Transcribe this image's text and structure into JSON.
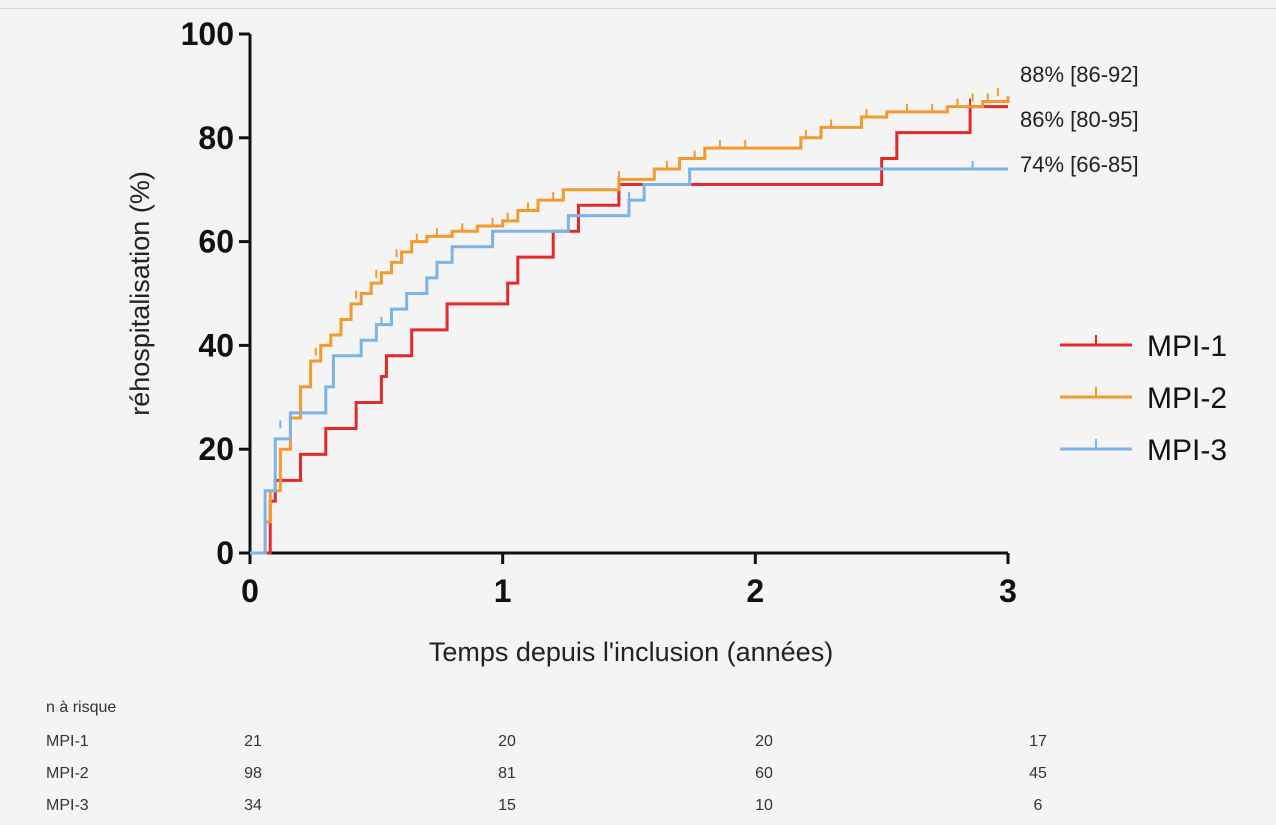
{
  "chart_data": {
    "type": "line",
    "xlabel": "Temps depuis l'inclusion (années)",
    "ylabel": "réhospitalisation (%)",
    "xlim": [
      0,
      3
    ],
    "ylim": [
      0,
      100
    ],
    "x_ticks": [
      0,
      1,
      2,
      3
    ],
    "y_ticks": [
      0,
      20,
      40,
      60,
      80,
      100
    ],
    "grid": false,
    "legend_position": "right",
    "series": [
      {
        "name": "MPI-1",
        "color": "#e32a2a",
        "end_label": "86% [80-95]",
        "steps": [
          [
            0,
            0
          ],
          [
            0.04,
            0
          ],
          [
            0.08,
            10
          ],
          [
            0.1,
            14
          ],
          [
            0.2,
            19
          ],
          [
            0.3,
            24
          ],
          [
            0.42,
            29
          ],
          [
            0.52,
            34
          ],
          [
            0.54,
            38
          ],
          [
            0.64,
            43
          ],
          [
            0.78,
            48
          ],
          [
            1.02,
            52
          ],
          [
            1.06,
            57
          ],
          [
            1.2,
            62
          ],
          [
            1.3,
            67
          ],
          [
            1.46,
            71
          ],
          [
            2.5,
            76
          ],
          [
            2.56,
            81
          ],
          [
            2.85,
            86
          ],
          [
            3.0,
            86
          ]
        ],
        "censored": [
          [
            1.46,
            71
          ],
          [
            2.85,
            86
          ]
        ]
      },
      {
        "name": "MPI-2",
        "color": "#f29a2e",
        "end_label": "88% [86-92]",
        "steps": [
          [
            0,
            0
          ],
          [
            0.04,
            0
          ],
          [
            0.06,
            6
          ],
          [
            0.08,
            12
          ],
          [
            0.12,
            20
          ],
          [
            0.16,
            26
          ],
          [
            0.2,
            32
          ],
          [
            0.24,
            37
          ],
          [
            0.28,
            40
          ],
          [
            0.32,
            42
          ],
          [
            0.36,
            45
          ],
          [
            0.4,
            48
          ],
          [
            0.44,
            50
          ],
          [
            0.48,
            52
          ],
          [
            0.52,
            54
          ],
          [
            0.56,
            56
          ],
          [
            0.6,
            58
          ],
          [
            0.64,
            60
          ],
          [
            0.7,
            61
          ],
          [
            0.8,
            62
          ],
          [
            0.9,
            63
          ],
          [
            1.0,
            64
          ],
          [
            1.06,
            66
          ],
          [
            1.14,
            68
          ],
          [
            1.24,
            70
          ],
          [
            1.46,
            72
          ],
          [
            1.6,
            74
          ],
          [
            1.7,
            76
          ],
          [
            1.8,
            78
          ],
          [
            2.18,
            80
          ],
          [
            2.26,
            82
          ],
          [
            2.42,
            84
          ],
          [
            2.52,
            85
          ],
          [
            2.76,
            86
          ],
          [
            2.9,
            87
          ],
          [
            3.0,
            88
          ]
        ],
        "censored": [
          [
            0.26,
            38
          ],
          [
            0.42,
            49
          ],
          [
            0.5,
            53
          ],
          [
            0.58,
            57
          ],
          [
            0.66,
            60
          ],
          [
            0.74,
            61
          ],
          [
            0.84,
            62
          ],
          [
            0.96,
            63
          ],
          [
            1.02,
            64
          ],
          [
            1.1,
            66
          ],
          [
            1.2,
            68
          ],
          [
            1.46,
            72
          ],
          [
            1.65,
            74
          ],
          [
            1.76,
            76
          ],
          [
            1.86,
            78
          ],
          [
            1.96,
            78
          ],
          [
            2.2,
            80
          ],
          [
            2.3,
            82
          ],
          [
            2.44,
            84
          ],
          [
            2.6,
            85
          ],
          [
            2.7,
            85
          ],
          [
            2.8,
            86
          ],
          [
            2.86,
            87
          ],
          [
            2.92,
            87
          ],
          [
            2.96,
            88
          ]
        ]
      },
      {
        "name": "MPI-3",
        "color": "#7ab4e8",
        "end_label": "74% [66-85]",
        "steps": [
          [
            0,
            0
          ],
          [
            0.04,
            0
          ],
          [
            0.06,
            12
          ],
          [
            0.1,
            22
          ],
          [
            0.16,
            27
          ],
          [
            0.3,
            32
          ],
          [
            0.33,
            38
          ],
          [
            0.44,
            41
          ],
          [
            0.5,
            44
          ],
          [
            0.56,
            47
          ],
          [
            0.62,
            50
          ],
          [
            0.7,
            53
          ],
          [
            0.74,
            56
          ],
          [
            0.8,
            59
          ],
          [
            0.96,
            62
          ],
          [
            1.22,
            62
          ],
          [
            1.26,
            65
          ],
          [
            1.5,
            68
          ],
          [
            1.56,
            71
          ],
          [
            1.74,
            74
          ],
          [
            3.0,
            74
          ]
        ],
        "censored": [
          [
            0.12,
            24
          ],
          [
            0.52,
            44
          ],
          [
            1.5,
            68
          ],
          [
            2.86,
            74
          ]
        ]
      }
    ],
    "at_risk": {
      "title": "n à risque",
      "x_positions": [
        0,
        1,
        2,
        3
      ],
      "rows": [
        {
          "label": "MPI-1",
          "values": [
            "21",
            "20",
            "20",
            "17"
          ]
        },
        {
          "label": "MPI-2",
          "values": [
            "98",
            "81",
            "60",
            "45"
          ]
        },
        {
          "label": "MPI-3",
          "values": [
            "34",
            "15",
            "10",
            "6"
          ]
        }
      ]
    }
  }
}
